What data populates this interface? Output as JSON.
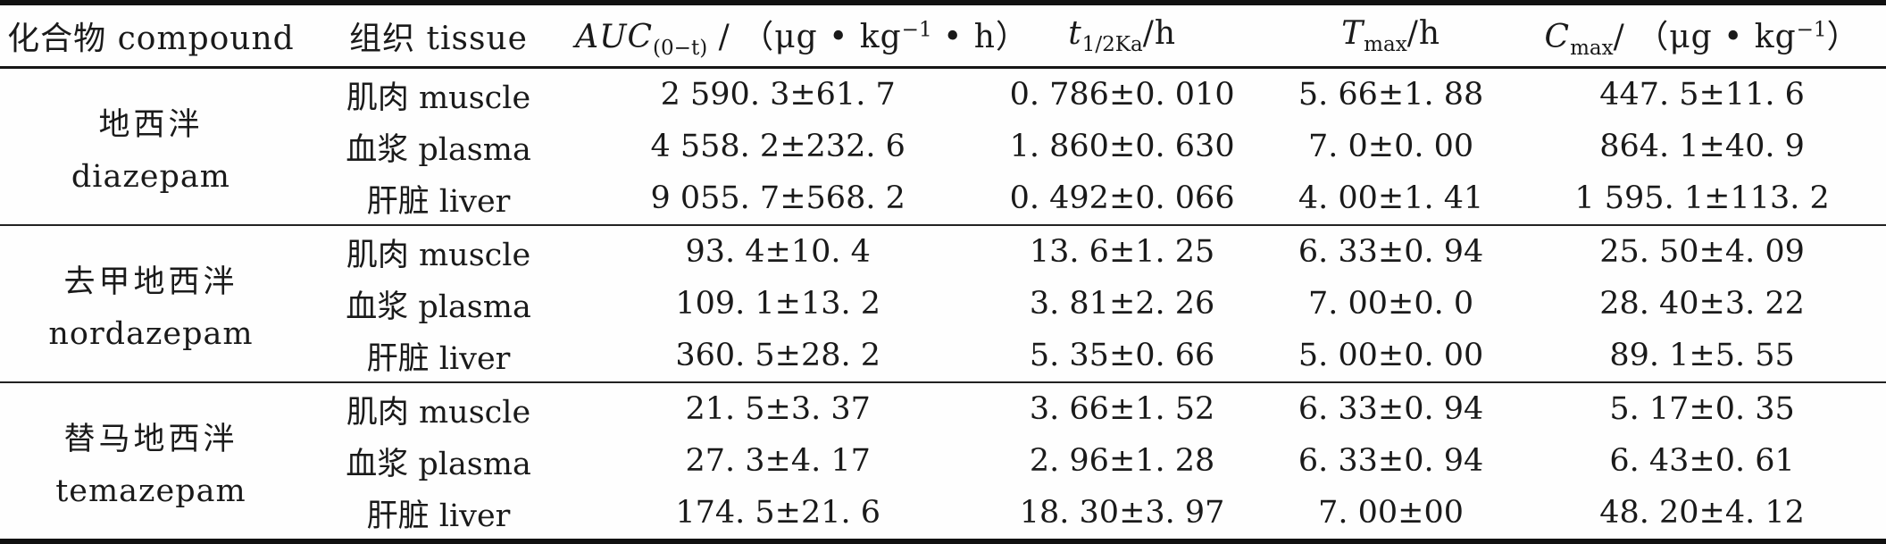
{
  "table": {
    "headers": {
      "compound": "化合物 compound",
      "tissue": "组织 tissue",
      "auc": {
        "sym": "AUC",
        "sub": "(0−t)",
        "mid": " / （μg • kg",
        "sup": "−1",
        "end": " • h）"
      },
      "t_half": {
        "sym": "t",
        "sub": "1/2Ka",
        "end": "/h"
      },
      "t_max": {
        "sym": "T",
        "sub": "max",
        "end": "/h"
      },
      "c_max": {
        "sym": "C",
        "sub": "max",
        "mid": "/ （μg • kg",
        "sup": "−1",
        "end": "）"
      }
    },
    "groups": [
      {
        "name_zh": "地西泮",
        "name_en": "diazepam",
        "rows": [
          {
            "tissue": "肌肉 muscle",
            "auc": "2 590. 3±61. 7",
            "t_half": "0. 786±0. 010",
            "t_max": "5. 66±1. 88",
            "c_max": "447. 5±11. 6"
          },
          {
            "tissue": "血浆 plasma",
            "auc": "4 558. 2±232. 6",
            "t_half": "1. 860±0. 630",
            "t_max": "7. 0±0. 00",
            "c_max": "864. 1±40. 9"
          },
          {
            "tissue": "肝脏 liver",
            "auc": "9 055. 7±568. 2",
            "t_half": "0. 492±0. 066",
            "t_max": "4. 00±1. 41",
            "c_max": "1 595. 1±113. 2"
          }
        ]
      },
      {
        "name_zh": "去甲地西泮",
        "name_en": "nordazepam",
        "rows": [
          {
            "tissue": "肌肉 muscle",
            "auc": "93. 4±10. 4",
            "t_half": "13. 6±1. 25",
            "t_max": "6. 33±0. 94",
            "c_max": "25. 50±4. 09"
          },
          {
            "tissue": "血浆 plasma",
            "auc": "109. 1±13. 2",
            "t_half": "3. 81±2. 26",
            "t_max": "7. 00±0. 0",
            "c_max": "28. 40±3. 22"
          },
          {
            "tissue": "肝脏 liver",
            "auc": "360. 5±28. 2",
            "t_half": "5. 35±0. 66",
            "t_max": "5. 00±0. 00",
            "c_max": "89. 1±5. 55"
          }
        ]
      },
      {
        "name_zh": "替马地西泮",
        "name_en": "temazepam",
        "rows": [
          {
            "tissue": "肌肉 muscle",
            "auc": "21. 5±3. 37",
            "t_half": "3. 66±1. 52",
            "t_max": "6. 33±0. 94",
            "c_max": "5. 17±0. 35"
          },
          {
            "tissue": "血浆 plasma",
            "auc": "27. 3±4. 17",
            "t_half": "2. 96±1. 28",
            "t_max": "6. 33±0. 94",
            "c_max": "6. 43±0. 61"
          },
          {
            "tissue": "肝脏 liver",
            "auc": "174. 5±21. 6",
            "t_half": "18. 30±3. 97",
            "t_max": "7. 00±00",
            "c_max": "48. 20±4. 12"
          }
        ]
      }
    ]
  }
}
